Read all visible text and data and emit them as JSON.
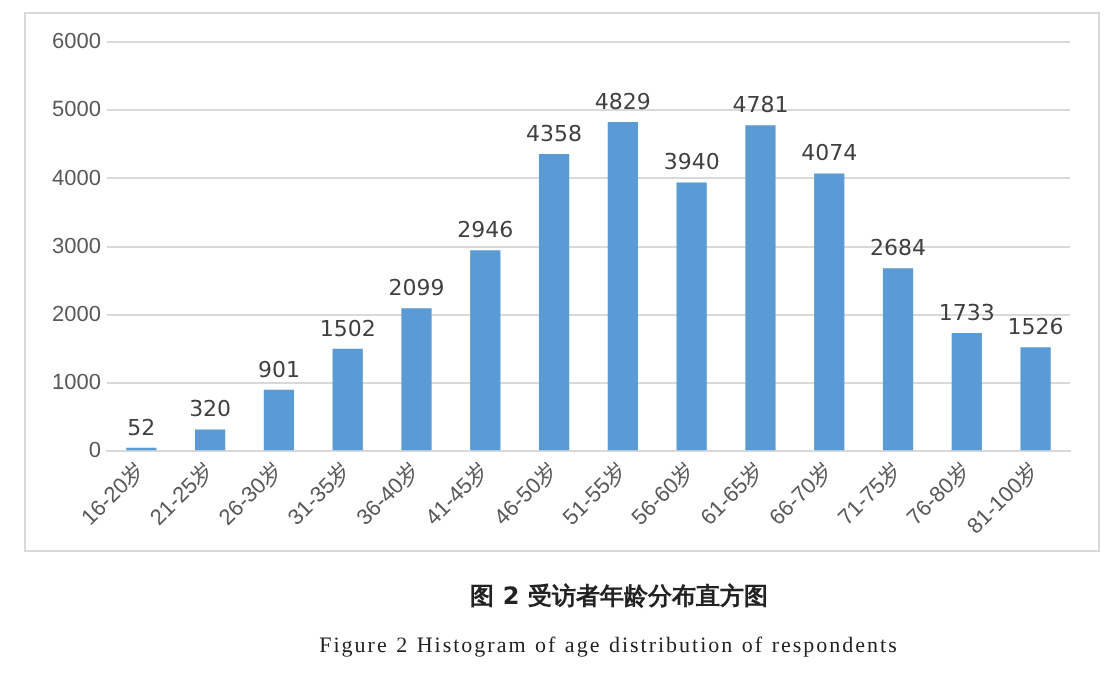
{
  "chart_data": {
    "type": "bar",
    "title": "图 2  受访者年龄分布直方图",
    "subtitle": "Figure 2  Histogram of age distribution of respondents",
    "categories": [
      "16-20岁",
      "21-25岁",
      "26-30岁",
      "31-35岁",
      "36-40岁",
      "41-45岁",
      "46-50岁",
      "51-55岁",
      "56-60岁",
      "61-65岁",
      "66-70岁",
      "71-75岁",
      "76-80岁",
      "81-100岁"
    ],
    "values": [
      52,
      320,
      901,
      1502,
      2099,
      2946,
      4358,
      4829,
      3940,
      4781,
      4074,
      2684,
      1733,
      1526
    ],
    "color": "#5b9bd5",
    "ylim": [
      0,
      6000
    ],
    "yticks": [
      0,
      1000,
      2000,
      3000,
      4000,
      5000,
      6000
    ],
    "grid": "y",
    "data_labels": true
  }
}
